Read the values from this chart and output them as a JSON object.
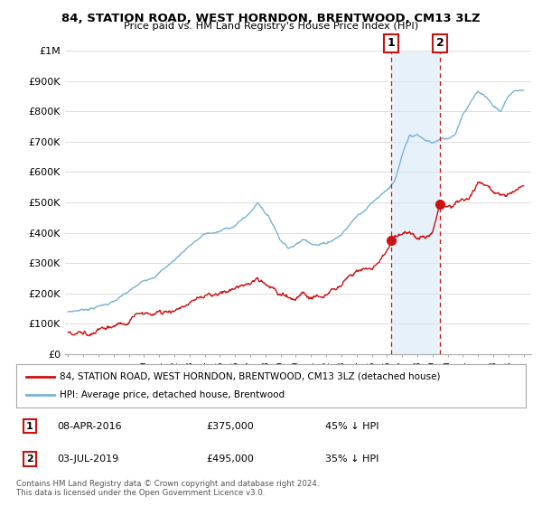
{
  "title": "84, STATION ROAD, WEST HORNDON, BRENTWOOD, CM13 3LZ",
  "subtitle": "Price paid vs. HM Land Registry's House Price Index (HPI)",
  "background_color": "#ffffff",
  "plot_bg_color": "#ffffff",
  "grid_color": "#dddddd",
  "hpi_color": "#7ab3d4",
  "hpi_fill_color": "#d6e8f5",
  "price_color": "#cc1111",
  "dashed_color": "#cc1111",
  "ylim": [
    0,
    1000000
  ],
  "yticks": [
    0,
    100000,
    200000,
    300000,
    400000,
    500000,
    600000,
    700000,
    800000,
    900000,
    1000000
  ],
  "ytick_labels": [
    "£0",
    "£100K",
    "£200K",
    "£300K",
    "£400K",
    "£500K",
    "£600K",
    "£700K",
    "£800K",
    "£900K",
    "£1M"
  ],
  "xlim_start": 1994.8,
  "xlim_end": 2025.5,
  "xtick_years": [
    1995,
    1996,
    1997,
    1998,
    1999,
    2000,
    2001,
    2002,
    2003,
    2004,
    2005,
    2006,
    2007,
    2008,
    2009,
    2010,
    2011,
    2012,
    2013,
    2014,
    2015,
    2016,
    2017,
    2018,
    2019,
    2020,
    2021,
    2022,
    2023,
    2024,
    2025
  ],
  "sale1_x": 2016.27,
  "sale1_y": 375000,
  "sale2_x": 2019.5,
  "sale2_y": 495000,
  "legend_label_red": "84, STATION ROAD, WEST HORNDON, BRENTWOOD, CM13 3LZ (detached house)",
  "legend_label_blue": "HPI: Average price, detached house, Brentwood",
  "annotation1_label": "1",
  "annotation1_date": "08-APR-2016",
  "annotation1_price": "£375,000",
  "annotation1_pct": "45% ↓ HPI",
  "annotation2_label": "2",
  "annotation2_date": "03-JUL-2019",
  "annotation2_price": "£495,000",
  "annotation2_pct": "35% ↓ HPI",
  "footnote": "Contains HM Land Registry data © Crown copyright and database right 2024.\nThis data is licensed under the Open Government Licence v3.0.",
  "hpi_knots_x": [
    1995,
    1996,
    1997,
    1998,
    1999,
    2000,
    2001,
    2002,
    2003,
    2004,
    2005,
    2006,
    2007,
    2007.5,
    2008,
    2008.5,
    2009,
    2009.5,
    2010,
    2010.5,
    2011,
    2011.5,
    2012,
    2012.5,
    2013,
    2014,
    2015,
    2016,
    2016.5,
    2017,
    2017.5,
    2018,
    2018.5,
    2019,
    2019.5,
    2020,
    2020.5,
    2021,
    2021.5,
    2022,
    2022.5,
    2023,
    2023.5,
    2024,
    2024.5,
    2025
  ],
  "hpi_knots_y": [
    140000,
    148000,
    160000,
    175000,
    200000,
    230000,
    265000,
    305000,
    355000,
    390000,
    395000,
    415000,
    455000,
    490000,
    460000,
    420000,
    370000,
    350000,
    360000,
    375000,
    370000,
    365000,
    370000,
    385000,
    400000,
    460000,
    510000,
    560000,
    580000,
    660000,
    720000,
    720000,
    700000,
    690000,
    700000,
    700000,
    720000,
    790000,
    830000,
    860000,
    850000,
    820000,
    800000,
    850000,
    870000,
    870000
  ],
  "price_knots_x": [
    1995,
    1996,
    1997,
    1998,
    1999,
    2000,
    2001,
    2002,
    2003,
    2004,
    2005,
    2006,
    2007,
    2007.5,
    2008,
    2008.5,
    2009,
    2009.5,
    2010,
    2010.5,
    2011,
    2011.5,
    2012,
    2012.5,
    2013,
    2014,
    2015,
    2015.5,
    2016.0,
    2016.27,
    2016.5,
    2017,
    2017.5,
    2018,
    2018.5,
    2019.0,
    2019.5,
    2020,
    2020.5,
    2021,
    2021.5,
    2022,
    2022.5,
    2023,
    2023.5,
    2024,
    2024.5,
    2025
  ],
  "price_knots_y": [
    72000,
    78000,
    85000,
    95000,
    105000,
    120000,
    135000,
    155000,
    175000,
    195000,
    200000,
    210000,
    230000,
    250000,
    235000,
    215000,
    195000,
    185000,
    195000,
    205000,
    200000,
    195000,
    200000,
    215000,
    230000,
    270000,
    295000,
    310000,
    340000,
    375000,
    390000,
    400000,
    400000,
    395000,
    390000,
    400000,
    495000,
    480000,
    490000,
    510000,
    530000,
    570000,
    565000,
    545000,
    540000,
    545000,
    550000,
    555000
  ]
}
